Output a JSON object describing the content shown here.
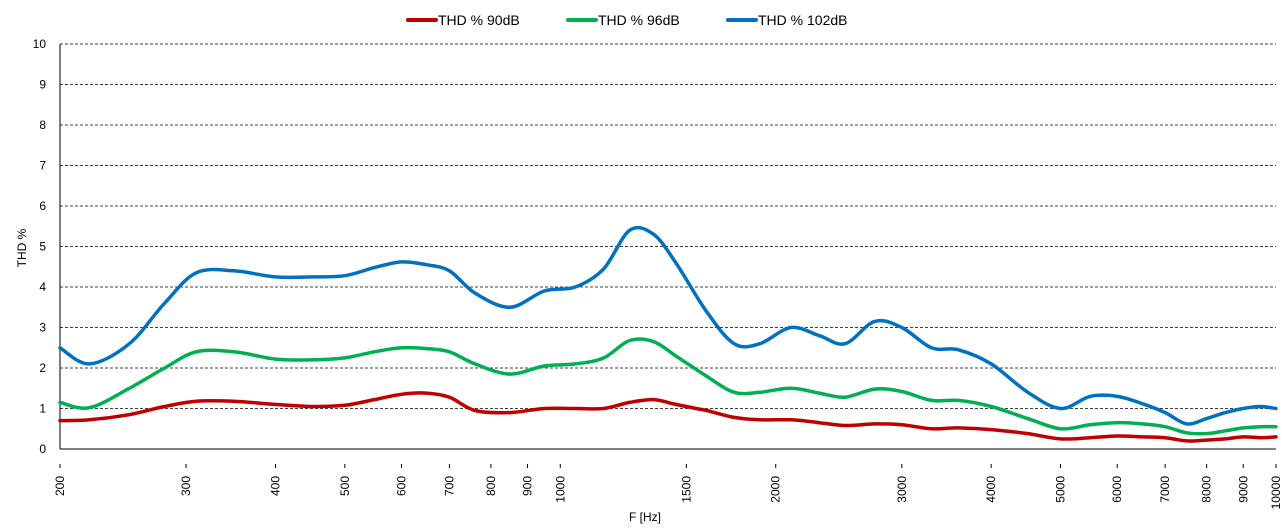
{
  "chart_data": {
    "type": "line",
    "title": "",
    "xlabel": "F [Hz]",
    "ylabel": "THD %",
    "x_scale": "log",
    "xlim": [
      200,
      10000
    ],
    "ylim": [
      0,
      10
    ],
    "y_ticks": [
      "0",
      "1",
      "2",
      "3",
      "4",
      "5",
      "6",
      "7",
      "8",
      "9",
      "10"
    ],
    "x_tick_labels": [
      "200",
      "300",
      "400",
      "500",
      "600",
      "700",
      "800",
      "900",
      "1000",
      "1500",
      "2000",
      "3000",
      "4000",
      "5000",
      "6000",
      "7000",
      "8000",
      "9000",
      "10000"
    ],
    "grid": "horizontal dashed",
    "legend": "top-center",
    "series": [
      {
        "name": "THD % 90dB",
        "color": "#c00000",
        "x": [
          200,
          220,
          250,
          280,
          310,
          350,
          400,
          450,
          500,
          550,
          600,
          650,
          700,
          760,
          850,
          950,
          1050,
          1150,
          1250,
          1350,
          1450,
          1600,
          1750,
          1900,
          2100,
          2300,
          2500,
          2750,
          3000,
          3300,
          3600,
          4000,
          4500,
          5000,
          5500,
          6000,
          6500,
          7000,
          7500,
          8000,
          8500,
          9000,
          9500,
          10000
        ],
        "y": [
          0.7,
          0.72,
          0.85,
          1.05,
          1.18,
          1.18,
          1.1,
          1.05,
          1.08,
          1.22,
          1.35,
          1.38,
          1.28,
          0.95,
          0.9,
          1.0,
          1.0,
          1.0,
          1.15,
          1.22,
          1.1,
          0.95,
          0.78,
          0.72,
          0.72,
          0.65,
          0.58,
          0.62,
          0.6,
          0.5,
          0.52,
          0.48,
          0.38,
          0.25,
          0.28,
          0.32,
          0.3,
          0.28,
          0.2,
          0.22,
          0.25,
          0.3,
          0.28,
          0.3
        ]
      },
      {
        "name": "THD % 96dB",
        "color": "#00b050",
        "x": [
          200,
          220,
          250,
          280,
          310,
          350,
          400,
          450,
          500,
          550,
          600,
          650,
          700,
          760,
          850,
          950,
          1050,
          1150,
          1250,
          1350,
          1450,
          1600,
          1750,
          1900,
          2100,
          2300,
          2500,
          2750,
          3000,
          3300,
          3600,
          4000,
          4500,
          5000,
          5500,
          6000,
          6500,
          7000,
          7500,
          8000,
          8500,
          9000,
          9500,
          10000
        ],
        "y": [
          1.15,
          1.02,
          1.5,
          2.0,
          2.4,
          2.4,
          2.22,
          2.2,
          2.25,
          2.4,
          2.5,
          2.48,
          2.4,
          2.1,
          1.85,
          2.05,
          2.1,
          2.25,
          2.68,
          2.65,
          2.3,
          1.8,
          1.4,
          1.4,
          1.5,
          1.38,
          1.28,
          1.48,
          1.42,
          1.2,
          1.2,
          1.05,
          0.75,
          0.5,
          0.6,
          0.65,
          0.62,
          0.55,
          0.4,
          0.38,
          0.45,
          0.52,
          0.55,
          0.55
        ]
      },
      {
        "name": "THD % 102dB",
        "color": "#0070c0",
        "x": [
          200,
          220,
          250,
          280,
          310,
          350,
          400,
          450,
          500,
          550,
          600,
          650,
          700,
          760,
          850,
          950,
          1050,
          1150,
          1250,
          1350,
          1450,
          1600,
          1750,
          1900,
          2100,
          2300,
          2500,
          2750,
          3000,
          3300,
          3600,
          4000,
          4500,
          5000,
          5500,
          6000,
          6500,
          7000,
          7500,
          8000,
          8500,
          9000,
          9500,
          10000
        ],
        "y": [
          2.5,
          2.1,
          2.6,
          3.6,
          4.35,
          4.4,
          4.25,
          4.25,
          4.28,
          4.48,
          4.62,
          4.55,
          4.4,
          3.85,
          3.5,
          3.9,
          4.0,
          4.45,
          5.4,
          5.3,
          4.6,
          3.4,
          2.6,
          2.6,
          3.0,
          2.8,
          2.6,
          3.15,
          3.0,
          2.5,
          2.45,
          2.1,
          1.4,
          1.0,
          1.3,
          1.3,
          1.12,
          0.9,
          0.62,
          0.75,
          0.9,
          1.0,
          1.05,
          1.0
        ]
      }
    ]
  }
}
